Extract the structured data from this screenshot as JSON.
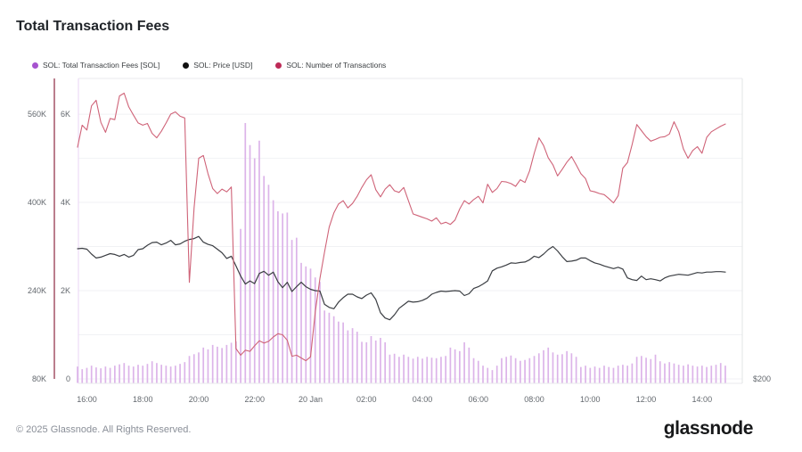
{
  "page": {
    "title": "Total Transaction Fees",
    "footer_copyright": "© 2025 Glassnode. All Rights Reserved.",
    "footer_logo": "glassnode"
  },
  "legend": {
    "items": [
      {
        "label": "SOL: Total Transaction Fees [SOL]",
        "color": "#a653cf"
      },
      {
        "label": "SOL: Price [USD]",
        "color": "#111111"
      },
      {
        "label": "SOL: Number of Transactions",
        "color": "#bd2a57"
      }
    ]
  },
  "chart_data": {
    "type": "mixed",
    "title": "Total Transaction Fees",
    "grid": "horizontal-only",
    "legend_position": "top-left",
    "x_axis": {
      "points": 140,
      "interval_minutes": 10,
      "tick_labels": [
        {
          "index": 2,
          "label": "16:00"
        },
        {
          "index": 14,
          "label": "18:00"
        },
        {
          "index": 26,
          "label": "20:00"
        },
        {
          "index": 38,
          "label": "22:00"
        },
        {
          "index": 50,
          "label": "20 Jan"
        },
        {
          "index": 62,
          "label": "02:00"
        },
        {
          "index": 74,
          "label": "04:00"
        },
        {
          "index": 86,
          "label": "06:00"
        },
        {
          "index": 98,
          "label": "08:00"
        },
        {
          "index": 110,
          "label": "10:00"
        },
        {
          "index": 122,
          "label": "12:00"
        },
        {
          "index": 134,
          "label": "14:00"
        }
      ]
    },
    "y_axes": {
      "transactions": {
        "side": "left-outer",
        "ylim": [
          80000,
          624600
        ],
        "axis_line_color": "#8e2941",
        "ticks": [
          {
            "label": "560K",
            "value": 560000
          },
          {
            "label": "400K",
            "value": 400000
          },
          {
            "label": "240K",
            "value": 240000
          },
          {
            "label": "80K",
            "value": 80000
          }
        ]
      },
      "fees_sol": {
        "side": "left-inner",
        "ylim": [
          0,
          6810
        ],
        "minor_gridline_values": [
          5000,
          3000,
          1000
        ],
        "ticks": [
          {
            "label": "6K",
            "value": 6000
          },
          {
            "label": "4K",
            "value": 4000
          },
          {
            "label": "2K",
            "value": 2000
          },
          {
            "label": "0",
            "value": 0
          }
        ]
      },
      "price_usd": {
        "side": "right",
        "ylim": [
          200,
          268.1
        ],
        "ticks": [
          {
            "label": "$200",
            "value": 200
          }
        ]
      }
    },
    "series": [
      {
        "name": "SOL: Total Transaction Fees [SOL]",
        "type": "bar",
        "y_axis": "fees_sol",
        "color": "#dcb4e9",
        "values": [
          280,
          220,
          250,
          300,
          260,
          240,
          280,
          250,
          300,
          330,
          360,
          300,
          280,
          320,
          300,
          340,
          400,
          360,
          320,
          300,
          280,
          300,
          340,
          380,
          520,
          560,
          600,
          710,
          670,
          770,
          730,
          700,
          770,
          820,
          850,
          3400,
          5800,
          5300,
          5000,
          5400,
          4600,
          4400,
          4050,
          3800,
          3750,
          3770,
          3150,
          3200,
          2630,
          2550,
          2500,
          2300,
          2200,
          1550,
          1500,
          1420,
          1300,
          1280,
          1100,
          1150,
          1070,
          840,
          830,
          970,
          870,
          930,
          830,
          550,
          570,
          500,
          550,
          500,
          460,
          500,
          460,
          500,
          480,
          470,
          500,
          520,
          710,
          670,
          630,
          830,
          710,
          470,
          410,
          300,
          250,
          200,
          300,
          470,
          500,
          530,
          470,
          410,
          430,
          470,
          520,
          580,
          650,
          710,
          600,
          550,
          560,
          630,
          580,
          500,
          270,
          300,
          250,
          280,
          250,
          300,
          270,
          250,
          300,
          320,
          300,
          350,
          500,
          520,
          480,
          450,
          550,
          400,
          350,
          380,
          350,
          320,
          300,
          330,
          300,
          280,
          300,
          270,
          300,
          320,
          360,
          300
        ]
      },
      {
        "name": "SOL: Price [USD]",
        "type": "line",
        "y_axis": "price_usd",
        "color": "#3a3d42",
        "values": [
          229.5,
          229.6,
          229.4,
          228.3,
          227.4,
          227.6,
          228.0,
          228.4,
          228.2,
          227.8,
          228.2,
          227.6,
          228.0,
          229.3,
          229.5,
          230.3,
          230.9,
          231.0,
          230.4,
          230.8,
          231.4,
          230.4,
          230.6,
          231.2,
          231.6,
          231.8,
          232.3,
          231.0,
          230.5,
          230.2,
          229.4,
          228.6,
          227.3,
          227.8,
          225.6,
          223.3,
          221.5,
          222.2,
          221.6,
          223.9,
          224.4,
          223.5,
          224.2,
          222.0,
          220.7,
          221.9,
          219.8,
          220.9,
          221.9,
          220.9,
          220.3,
          220.0,
          219.9,
          216.9,
          216.2,
          215.9,
          217.4,
          218.4,
          219.2,
          219.2,
          218.6,
          218.2,
          219.0,
          219.5,
          218.0,
          215.0,
          213.8,
          213.4,
          214.5,
          216.0,
          216.8,
          217.6,
          217.4,
          217.5,
          217.8,
          218.3,
          219.2,
          219.6,
          219.9,
          219.8,
          219.9,
          220.0,
          219.9,
          218.9,
          219.3,
          220.5,
          220.9,
          221.5,
          222.2,
          224.5,
          225.1,
          225.4,
          225.8,
          226.3,
          226.2,
          226.4,
          226.5,
          227.0,
          227.8,
          227.5,
          228.3,
          229.3,
          230.0,
          229.0,
          227.7,
          226.6,
          226.7,
          226.9,
          227.4,
          227.4,
          226.8,
          226.3,
          226.0,
          225.6,
          225.3,
          225.0,
          225.3,
          224.9,
          222.9,
          222.5,
          222.3,
          223.3,
          222.5,
          222.7,
          222.5,
          222.2,
          222.9,
          223.3,
          223.5,
          223.7,
          223.6,
          223.5,
          223.8,
          224.1,
          224.0,
          224.2,
          224.2,
          224.3,
          224.3,
          224.2
        ]
      },
      {
        "name": "SOL: Number of Transactions",
        "type": "line",
        "y_axis": "transactions",
        "color": "#cf6378",
        "values": [
          500000,
          540000,
          531000,
          575000,
          585000,
          545000,
          527000,
          552000,
          550000,
          593000,
          598000,
          573000,
          558000,
          544000,
          540000,
          543000,
          525000,
          517000,
          529000,
          544000,
          560000,
          564000,
          556000,
          553000,
          255000,
          390000,
          480000,
          485000,
          452000,
          425000,
          416000,
          424000,
          419000,
          428000,
          135000,
          123000,
          132000,
          130000,
          140000,
          149000,
          145000,
          148000,
          156000,
          162000,
          160000,
          150000,
          121000,
          123000,
          118000,
          113000,
          120000,
          200000,
          262000,
          310000,
          355000,
          381000,
          397000,
          403000,
          390000,
          398000,
          411000,
          427000,
          441000,
          450000,
          423000,
          410000,
          424000,
          432000,
          421000,
          418000,
          427000,
          403000,
          379000,
          376000,
          373000,
          370000,
          366000,
          372000,
          361000,
          364000,
          360000,
          368000,
          388000,
          403000,
          397000,
          405000,
          411000,
          399000,
          433000,
          418000,
          425000,
          438000,
          437000,
          434000,
          429000,
          441000,
          436000,
          457000,
          489000,
          517000,
          503000,
          481000,
          468000,
          448000,
          460000,
          473000,
          483000,
          468000,
          452000,
          443000,
          421000,
          419000,
          416000,
          414000,
          407000,
          399000,
          412000,
          462000,
          472000,
          505000,
          541000,
          530000,
          519000,
          511000,
          514000,
          518000,
          519000,
          524000,
          546000,
          528000,
          497000,
          480000,
          494000,
          501000,
          489000,
          518000,
          528000,
          533000,
          538000,
          542000
        ]
      }
    ]
  }
}
